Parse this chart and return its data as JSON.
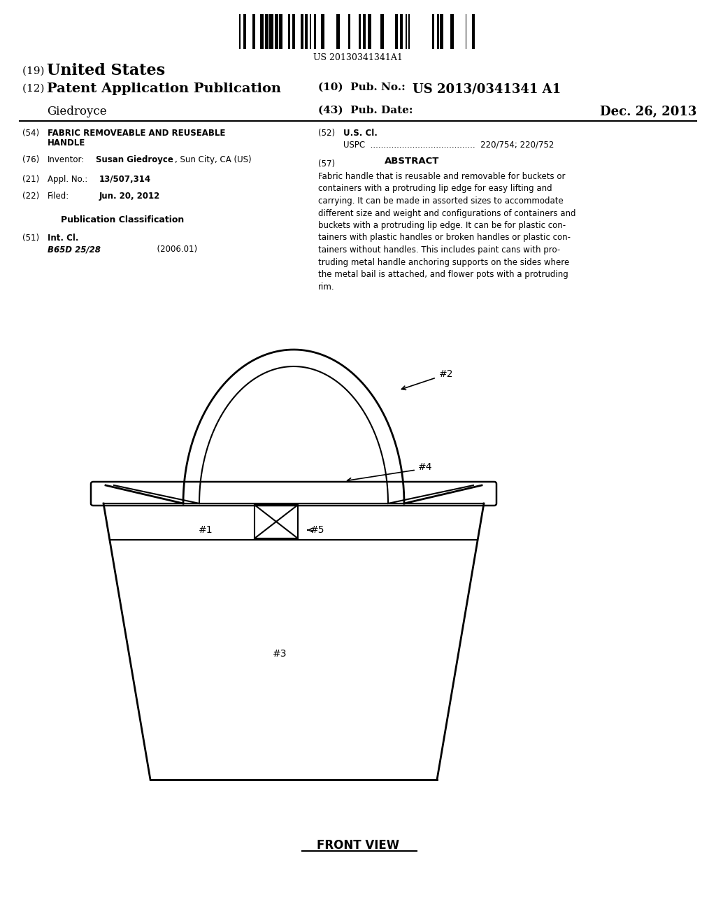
{
  "bg_color": "#ffffff",
  "barcode_text": "US 20130341341A1",
  "title_19_prefix": "(19) ",
  "title_19_bold": "United States",
  "title_12_prefix": "(12) ",
  "title_12_bold": "Patent Application Publication",
  "pub_no_label": "(10)  Pub. No.:",
  "pub_no_value": "US 2013/0341341 A1",
  "author": "Giedroyce",
  "pub_date_label": "(43)  Pub. Date:",
  "pub_date_value": "Dec. 26, 2013",
  "f54_label": "(54)",
  "f54_bold": "FABRIC REMOVEABLE AND REUSEABLE\n        HANDLE",
  "f76_label": "(76)",
  "f76_mid": "Inventor:",
  "f76_bold": "Susan Giedroyce",
  "f76_rest": ", Sun City, CA (US)",
  "f21_label": "(21)",
  "f21_mid": "Appl. No.:",
  "f21_bold": "13/507,314",
  "f22_label": "(22)",
  "f22_mid": "Filed:",
  "f22_bold": "Jun. 20, 2012",
  "pub_class_header": "Publication Classification",
  "f51_label": "(51)",
  "f51_header": "Int. Cl.",
  "f51_class": "B65D 25/28",
  "f51_year": "(2006.01)",
  "f52_label": "(52)",
  "f52_header": "U.S. Cl.",
  "f52_uspc": "USPC  ........................................  220/754; 220/752",
  "abstract_num": "(57)",
  "abstract_header": "ABSTRACT",
  "abstract_body": "Fabric handle that is reusable and removable for buckets or\ncontainers with a protruding lip edge for easy lifting and\ncarrying. It can be made in assorted sizes to accommodate\ndifferent size and weight and configurations of containers and\nbuckets with a protruding lip edge. It can be for plastic con-\ntainers with plastic handles or broken handles or plastic con-\ntainers without handles. This includes paint cans with pro-\ntruding metal handle anchoring supports on the sides where\nthe metal bail is attached, and flower pots with a protruding\nrim.",
  "caption": "FRONT VIEW",
  "label_1": "#1",
  "label_2": "#2",
  "label_3": "#3",
  "label_4": "#4",
  "label_5": "#5"
}
